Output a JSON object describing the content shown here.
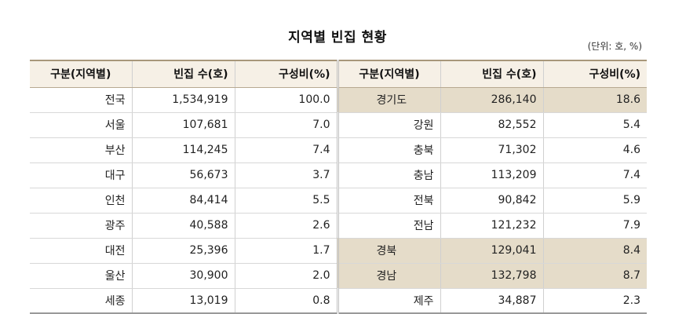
{
  "title": "지역별 빈집 현황",
  "unit": "(단위: 호, %)",
  "headers": {
    "region": "구분(지역별)",
    "count": "빈집 수(호)",
    "ratio": "구성비(%)"
  },
  "rows": [
    {
      "l_region": "전국",
      "l_count": "1,534,919",
      "l_ratio": "100.0",
      "r_region": "경기도",
      "r_count": "286,140",
      "r_ratio": "18.6",
      "r_highlight": true
    },
    {
      "l_region": "서울",
      "l_count": "107,681",
      "l_ratio": "7.0",
      "r_region": "강원",
      "r_count": "82,552",
      "r_ratio": "5.4",
      "r_highlight": false
    },
    {
      "l_region": "부산",
      "l_count": "114,245",
      "l_ratio": "7.4",
      "r_region": "충북",
      "r_count": "71,302",
      "r_ratio": "4.6",
      "r_highlight": false
    },
    {
      "l_region": "대구",
      "l_count": "56,673",
      "l_ratio": "3.7",
      "r_region": "충남",
      "r_count": "113,209",
      "r_ratio": "7.4",
      "r_highlight": false
    },
    {
      "l_region": "인천",
      "l_count": "84,414",
      "l_ratio": "5.5",
      "r_region": "전북",
      "r_count": "90,842",
      "r_ratio": "5.9",
      "r_highlight": false
    },
    {
      "l_region": "광주",
      "l_count": "40,588",
      "l_ratio": "2.6",
      "r_region": "전남",
      "r_count": "121,232",
      "r_ratio": "7.9",
      "r_highlight": false
    },
    {
      "l_region": "대전",
      "l_count": "25,396",
      "l_ratio": "1.7",
      "r_region": "경북",
      "r_count": "129,041",
      "r_ratio": "8.4",
      "r_highlight": true
    },
    {
      "l_region": "울산",
      "l_count": "30,900",
      "l_ratio": "2.0",
      "r_region": "경남",
      "r_count": "132,798",
      "r_ratio": "8.7",
      "r_highlight": true
    },
    {
      "l_region": "세종",
      "l_count": "13,019",
      "l_ratio": "0.8",
      "r_region": "제주",
      "r_count": "34,887",
      "r_ratio": "2.3",
      "r_highlight": false
    }
  ],
  "colors": {
    "header_bg": "#f6f0e6",
    "highlight_bg": "#e5dcc9",
    "header_rule": "#a8977a"
  }
}
